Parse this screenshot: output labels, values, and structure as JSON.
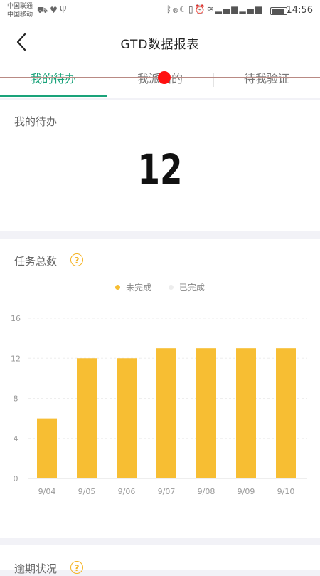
{
  "status_bar": {
    "carrier_1": "中国联通",
    "carrier_2": "中国移动",
    "left_icons": [
      "truck-icon",
      "heart-pulse-icon",
      "usb-icon"
    ],
    "right_icons": [
      "bluetooth-icon",
      "nfc-icon",
      "moon-icon",
      "vibrate-icon",
      "alarm-icon",
      "wifi-icon",
      "signal-3g-icon",
      "signal-4g-icon",
      "battery-icon"
    ],
    "battery_level_percent": 90,
    "time": "14:56"
  },
  "header": {
    "title": "GTD数据报表",
    "back_icon": "chevron-left-icon"
  },
  "tabs": [
    {
      "label": "我的待办",
      "active": true
    },
    {
      "label": "我派出的",
      "active": false
    },
    {
      "label": "待我验证",
      "active": false
    }
  ],
  "pending": {
    "label": "我的待办",
    "count": "12"
  },
  "task_chart": {
    "label": "任务总数",
    "help_icon": "question-circle-icon",
    "help_glyph": "?"
  },
  "overdue": {
    "label": "逾期状况",
    "help_icon": "question-circle-icon",
    "help_glyph": "?"
  },
  "colors": {
    "accent_green": "#1aa37a",
    "incomplete": "#f7be33",
    "complete": "#ededed"
  },
  "chart_data": {
    "type": "bar",
    "categories": [
      "9/04",
      "9/05",
      "9/06",
      "9/07",
      "9/08",
      "9/09",
      "9/10"
    ],
    "series": [
      {
        "name": "未完成",
        "values": [
          6,
          12,
          12,
          13,
          13,
          13,
          13
        ]
      },
      {
        "name": "已完成",
        "values": [
          0,
          0,
          0,
          0,
          0,
          0,
          0
        ]
      }
    ],
    "yticks": [
      0,
      4,
      8,
      12,
      16
    ],
    "ylim": [
      0,
      16
    ],
    "grid": true,
    "legend_position": "top-center"
  }
}
